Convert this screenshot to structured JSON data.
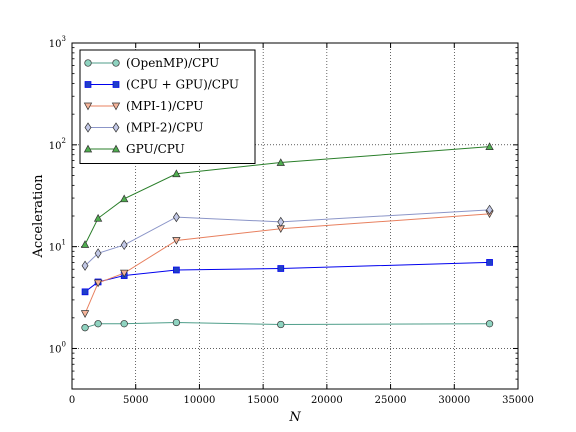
{
  "chart_data": {
    "type": "line",
    "xlabel": "N",
    "ylabel": "Acceleration",
    "xlim": [
      0,
      35000
    ],
    "ylim": [
      0.4,
      1000
    ],
    "yscale": "log",
    "grid": true,
    "legend_position": "top-left",
    "x_ticks": [
      {
        "value": 0,
        "label": "0"
      },
      {
        "value": 5000,
        "label": "5000"
      },
      {
        "value": 10000,
        "label": "10000"
      },
      {
        "value": 15000,
        "label": "15000"
      },
      {
        "value": 20000,
        "label": "20000"
      },
      {
        "value": 25000,
        "label": "25000"
      },
      {
        "value": 30000,
        "label": "30000"
      },
      {
        "value": 35000,
        "label": "35000"
      }
    ],
    "y_ticks": [
      {
        "value": 1,
        "base": "10",
        "exp": "0"
      },
      {
        "value": 10,
        "base": "10",
        "exp": "1"
      },
      {
        "value": 100,
        "base": "10",
        "exp": "2"
      },
      {
        "value": 1000,
        "base": "10",
        "exp": "3"
      }
    ],
    "x": [
      1024,
      2048,
      4096,
      8192,
      16384,
      32768
    ],
    "series": [
      {
        "name": "(OpenMP)/CPU",
        "color": "#4f9e8a",
        "fill": "#8fd3c0",
        "marker": "circle",
        "values": [
          1.6,
          1.75,
          1.75,
          1.8,
          1.72,
          1.75
        ]
      },
      {
        "name": "(CPU + GPU)/CPU",
        "color": "#0000ee",
        "fill": "#1f3fc8",
        "marker": "square",
        "values": [
          3.6,
          4.5,
          5.2,
          5.9,
          6.1,
          7.0
        ]
      },
      {
        "name": "(MPI-1)/CPU",
        "color": "#e8805f",
        "fill": "#f5b49a",
        "marker": "triangle-down",
        "values": [
          2.2,
          4.4,
          5.5,
          11.5,
          15.0,
          21.0
        ]
      },
      {
        "name": "(MPI-2)/CPU",
        "color": "#8b95c8",
        "fill": "#c2c8e6",
        "marker": "diamond",
        "values": [
          6.5,
          8.6,
          10.4,
          19.5,
          17.5,
          23.0
        ]
      },
      {
        "name": "GPU/CPU",
        "color": "#2a7f2a",
        "fill": "#4fae4f",
        "marker": "triangle-up",
        "values": [
          10.5,
          19.0,
          29.5,
          52.0,
          67.0,
          96.0
        ]
      }
    ]
  }
}
